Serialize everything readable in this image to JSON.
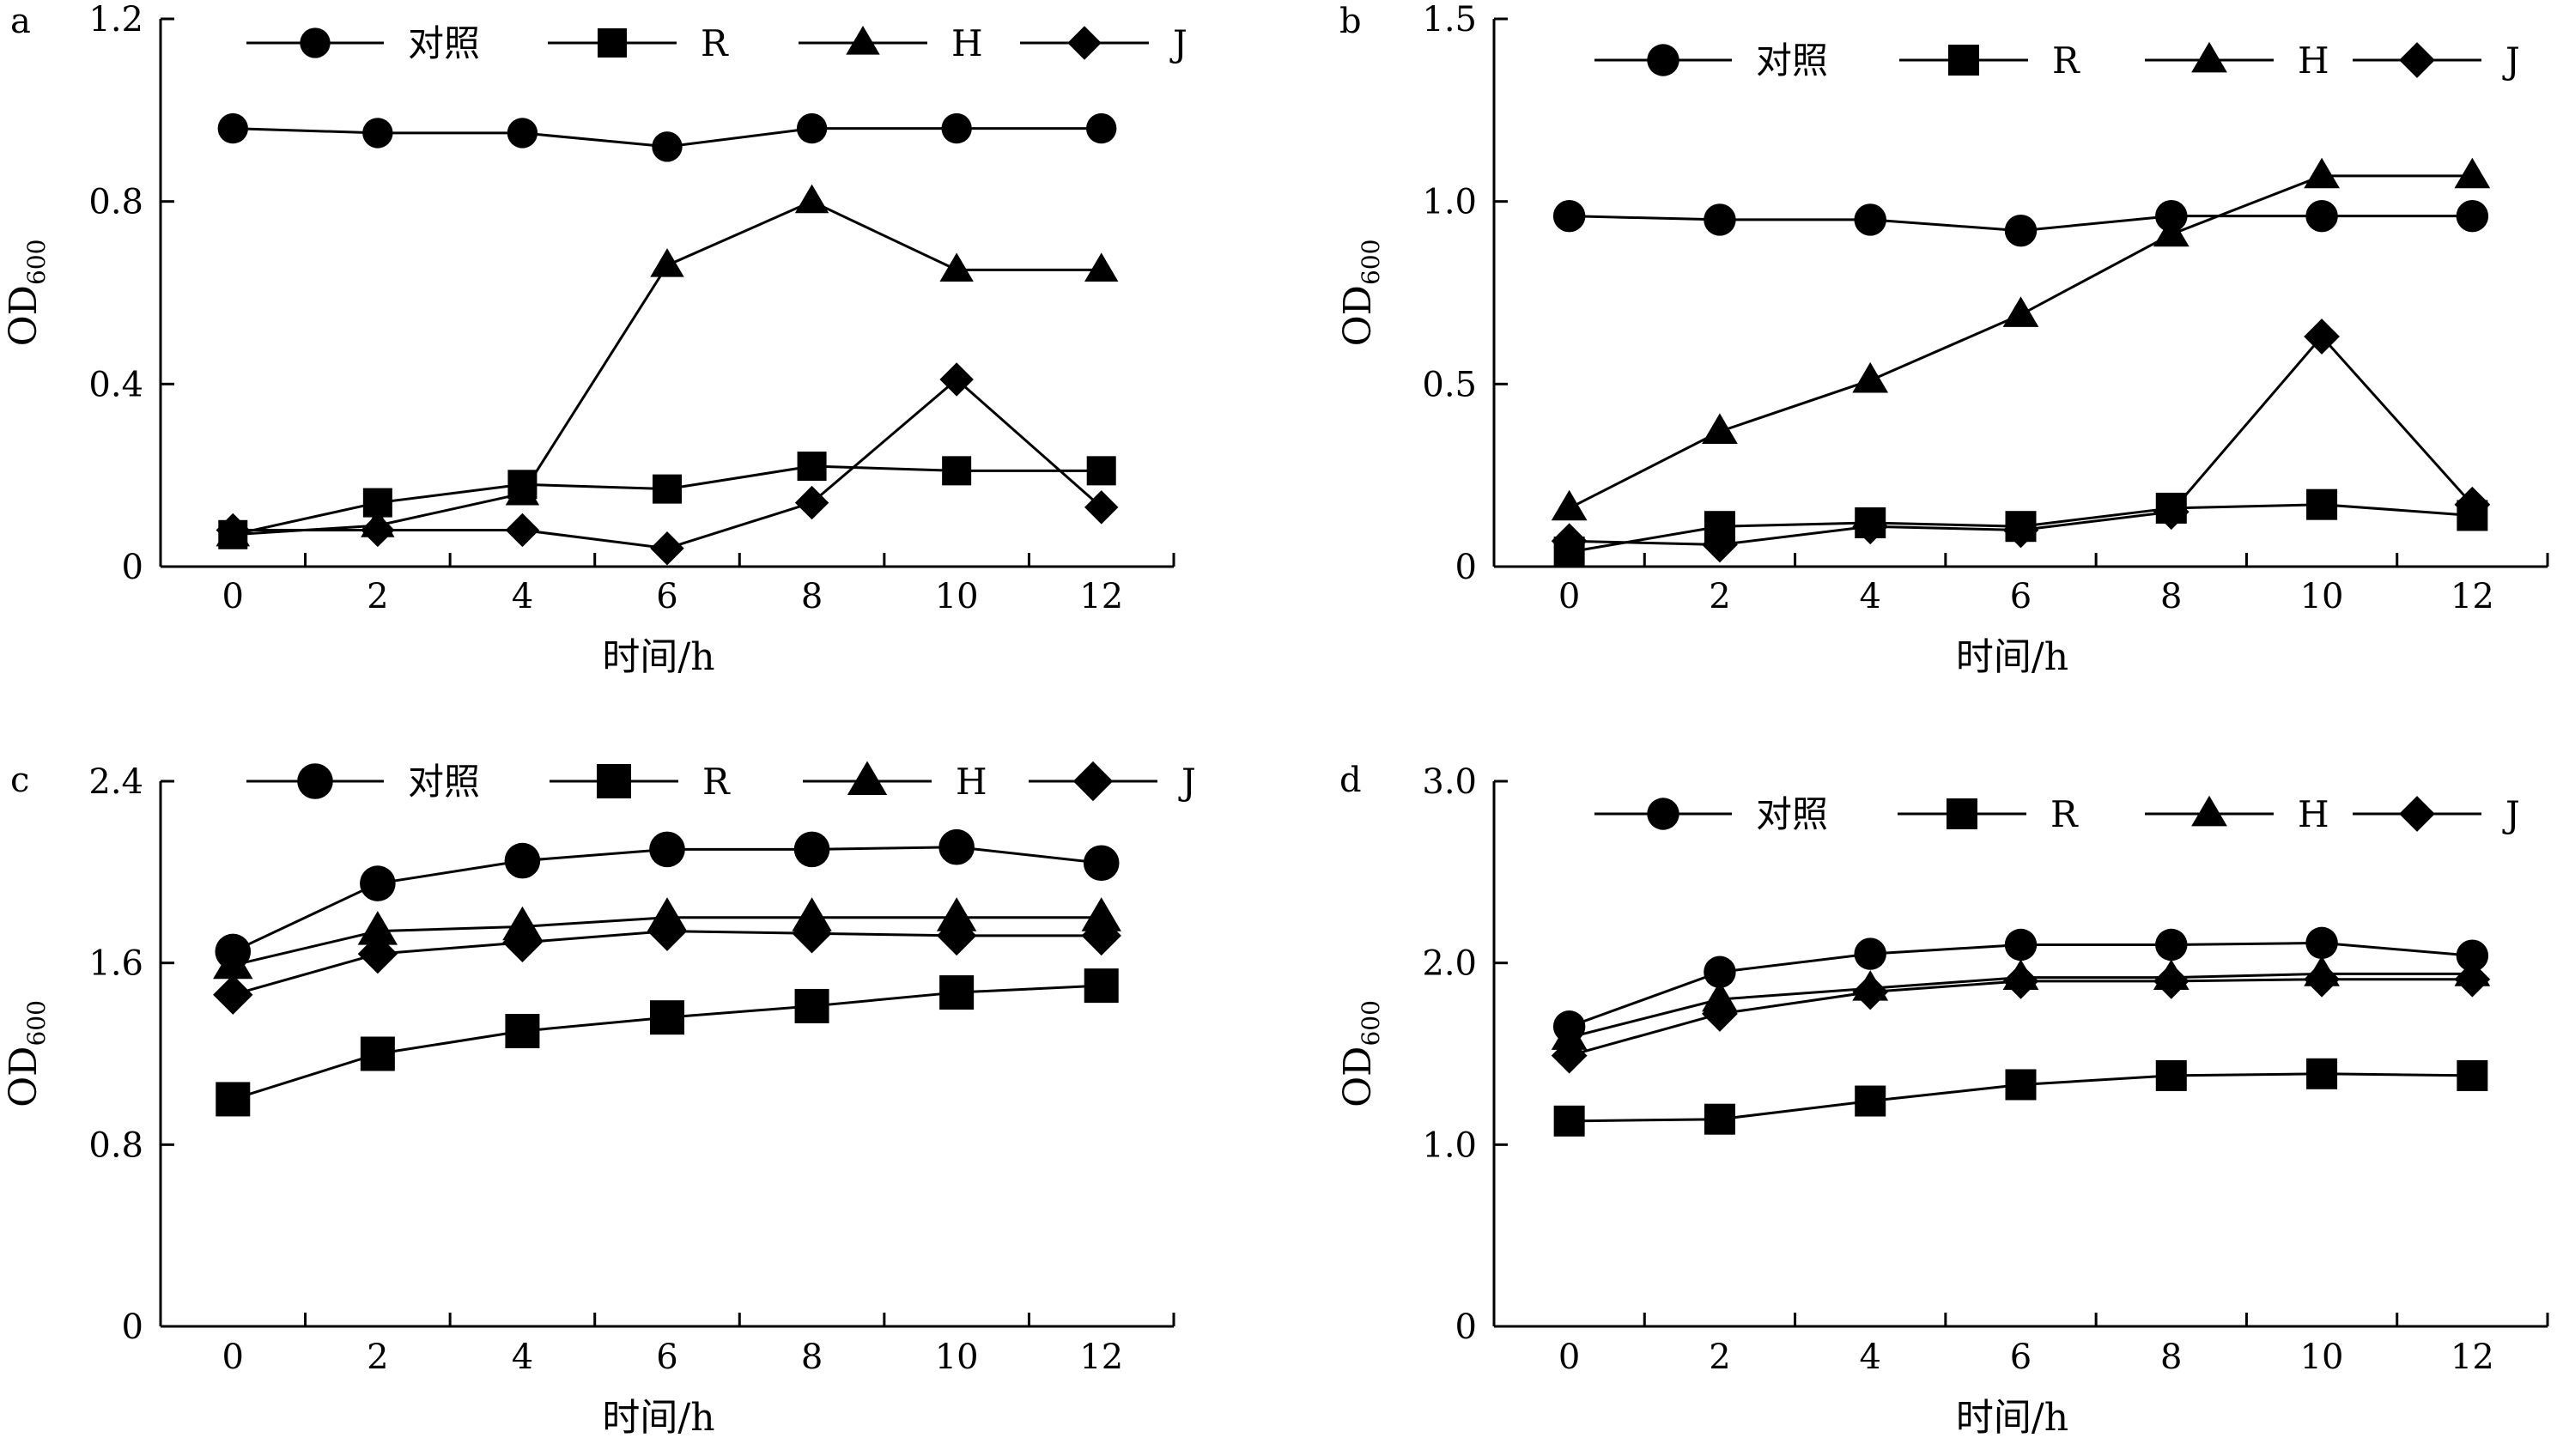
{
  "chart_data": [
    {
      "type": "line",
      "panel": "a",
      "xlabel": "时间/h",
      "ylabel": "OD",
      "ylabel_sub": "600",
      "xlim": [
        -1,
        13
      ],
      "ylim": [
        0,
        1.2
      ],
      "xticks": [
        0,
        2,
        4,
        6,
        8,
        10,
        12
      ],
      "yticks": [
        0,
        0.4,
        0.8,
        1.2
      ],
      "ytick_labels": [
        "0",
        "0.4",
        "0.8",
        "1.2"
      ],
      "x": [
        0,
        2,
        4,
        6,
        8,
        10,
        12
      ],
      "series": [
        {
          "name": "对照",
          "marker": "circle",
          "values": [
            0.96,
            0.95,
            0.95,
            0.92,
            0.96,
            0.96,
            0.96
          ]
        },
        {
          "name": "R",
          "marker": "square",
          "values": [
            0.07,
            0.14,
            0.18,
            0.17,
            0.22,
            0.21,
            0.21
          ]
        },
        {
          "name": "H",
          "marker": "triangle",
          "values": [
            0.07,
            0.09,
            0.16,
            0.66,
            0.8,
            0.65,
            0.65
          ]
        },
        {
          "name": "J",
          "marker": "diamond",
          "values": [
            0.08,
            0.08,
            0.08,
            0.04,
            0.14,
            0.41,
            0.13
          ]
        }
      ],
      "legend_position": "top"
    },
    {
      "type": "line",
      "panel": "b",
      "xlabel": "时间/h",
      "ylabel": "OD",
      "ylabel_sub": "600",
      "xlim": [
        -1,
        13
      ],
      "ylim": [
        0,
        1.5
      ],
      "xticks": [
        0,
        2,
        4,
        6,
        8,
        10,
        12
      ],
      "yticks": [
        0,
        0.5,
        1.0,
        1.5
      ],
      "ytick_labels": [
        "0",
        "0.5",
        "1.0",
        "1.5"
      ],
      "x": [
        0,
        2,
        4,
        6,
        8,
        10,
        12
      ],
      "series": [
        {
          "name": "对照",
          "marker": "circle",
          "values": [
            0.96,
            0.95,
            0.95,
            0.92,
            0.96,
            0.96,
            0.96
          ]
        },
        {
          "name": "R",
          "marker": "square",
          "values": [
            0.04,
            0.11,
            0.12,
            0.11,
            0.16,
            0.17,
            0.14
          ]
        },
        {
          "name": "H",
          "marker": "triangle",
          "values": [
            0.16,
            0.37,
            0.51,
            0.69,
            0.91,
            1.07,
            1.07
          ]
        },
        {
          "name": "J",
          "marker": "diamond",
          "values": [
            0.07,
            0.06,
            0.11,
            0.1,
            0.15,
            0.63,
            0.17
          ]
        }
      ],
      "legend_position": "top"
    },
    {
      "type": "line",
      "panel": "c",
      "xlabel": "时间/h",
      "ylabel": "OD",
      "ylabel_sub": "600",
      "xlim": [
        -1,
        13
      ],
      "ylim": [
        0,
        2.4
      ],
      "xticks": [
        0,
        2,
        4,
        6,
        8,
        10,
        12
      ],
      "yticks": [
        0,
        0.8,
        1.6,
        2.4
      ],
      "ytick_labels": [
        "0",
        "0.8",
        "1.6",
        "2.4"
      ],
      "x": [
        0,
        2,
        4,
        6,
        8,
        10,
        12
      ],
      "series": [
        {
          "name": "对照",
          "marker": "circle",
          "values": [
            1.65,
            1.95,
            2.05,
            2.1,
            2.1,
            2.11,
            2.04
          ]
        },
        {
          "name": "R",
          "marker": "square",
          "values": [
            1.0,
            1.2,
            1.3,
            1.36,
            1.41,
            1.47,
            1.5
          ]
        },
        {
          "name": "H",
          "marker": "triangle",
          "values": [
            1.59,
            1.74,
            1.76,
            1.8,
            1.8,
            1.8,
            1.8
          ]
        },
        {
          "name": "J",
          "marker": "diamond",
          "values": [
            1.46,
            1.64,
            1.69,
            1.74,
            1.73,
            1.72,
            1.72
          ]
        }
      ],
      "legend_position": "top"
    },
    {
      "type": "line",
      "panel": "d",
      "xlabel": "时间/h",
      "ylabel": "OD",
      "ylabel_sub": "600",
      "xlim": [
        -1,
        13
      ],
      "ylim": [
        0,
        3.0
      ],
      "xticks": [
        0,
        2,
        4,
        6,
        8,
        10,
        12
      ],
      "yticks": [
        0,
        1.0,
        2.0,
        3.0
      ],
      "ytick_labels": [
        "0",
        "1.0",
        "2.0",
        "3.0"
      ],
      "x": [
        0,
        2,
        4,
        6,
        8,
        10,
        12
      ],
      "series": [
        {
          "name": "对照",
          "marker": "circle",
          "values": [
            1.65,
            1.95,
            2.05,
            2.1,
            2.1,
            2.11,
            2.04
          ]
        },
        {
          "name": "R",
          "marker": "square",
          "values": [
            1.13,
            1.14,
            1.24,
            1.33,
            1.38,
            1.39,
            1.38
          ]
        },
        {
          "name": "H",
          "marker": "triangle",
          "values": [
            1.59,
            1.8,
            1.86,
            1.92,
            1.92,
            1.94,
            1.94
          ]
        },
        {
          "name": "J",
          "marker": "diamond",
          "values": [
            1.49,
            1.72,
            1.84,
            1.9,
            1.9,
            1.91,
            1.91
          ]
        }
      ],
      "legend_position": "top"
    }
  ]
}
